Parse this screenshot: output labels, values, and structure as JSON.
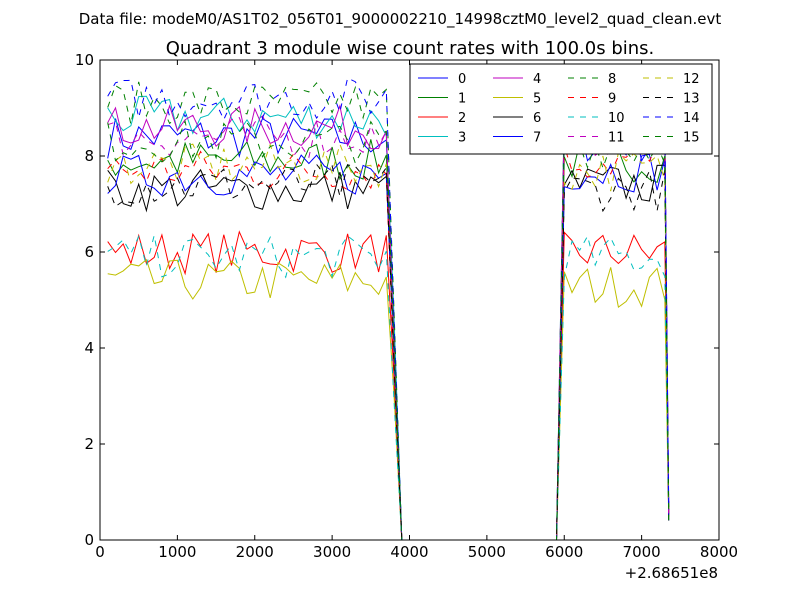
{
  "suptitle": "Data file: modeM0/AS1T02_056T01_9000002210_14998cztM0_level2_quad_clean.evt",
  "chart_data": {
    "type": "line",
    "title": "Quadrant 3 module wise count rates with 100.0s bins.",
    "xlabel": "",
    "ylabel": "",
    "x_offset_label": "+2.68651e8",
    "xlim": [
      0,
      8000
    ],
    "ylim": [
      0,
      10
    ],
    "xticks": [
      0,
      1000,
      2000,
      3000,
      4000,
      5000,
      6000,
      7000,
      8000
    ],
    "yticks": [
      0,
      2,
      4,
      6,
      8,
      10
    ],
    "x": [
      100,
      200,
      300,
      400,
      500,
      600,
      700,
      800,
      900,
      1000,
      1100,
      1200,
      1300,
      1400,
      1500,
      1600,
      1700,
      1800,
      1900,
      2000,
      2100,
      2200,
      2300,
      2400,
      2500,
      2600,
      2700,
      2800,
      2900,
      3000,
      3100,
      3200,
      3300,
      3400,
      3500,
      3600,
      3700,
      3800,
      3900,
      4000,
      4100,
      4200,
      4300,
      4400,
      4500,
      4600,
      4700,
      4800,
      4900,
      5000,
      5100,
      5200,
      5300,
      5400,
      5500,
      5600,
      5700,
      5800,
      5900,
      6000,
      6100,
      6200,
      6300,
      6400,
      6500,
      6600,
      6700,
      6800,
      6900,
      7000,
      7100,
      7200,
      7300,
      7350
    ],
    "segments": {
      "on1": [
        100,
        3800
      ],
      "off": [
        3950,
        5800
      ],
      "on2": [
        5950,
        7300
      ]
    },
    "legend": {
      "position": "top-right",
      "columns": 4
    },
    "series": [
      {
        "name": "0",
        "color": "#0000ff",
        "dash": "solid",
        "level1": 8.4,
        "level2": 8.3
      },
      {
        "name": "1",
        "color": "#008000",
        "dash": "solid",
        "level1": 7.9,
        "level2": 7.9
      },
      {
        "name": "2",
        "color": "#ff0000",
        "dash": "solid",
        "level1": 6.0,
        "level2": 6.0
      },
      {
        "name": "3",
        "color": "#00bfbf",
        "dash": "solid",
        "level1": 8.8,
        "level2": 8.6
      },
      {
        "name": "4",
        "color": "#bf00bf",
        "dash": "solid",
        "level1": 8.6,
        "level2": 8.5
      },
      {
        "name": "5",
        "color": "#bfbf00",
        "dash": "solid",
        "level1": 5.4,
        "level2": 5.3
      },
      {
        "name": "6",
        "color": "#000000",
        "dash": "solid",
        "level1": 7.3,
        "level2": 7.4
      },
      {
        "name": "7",
        "color": "#0000ff",
        "dash": "solid",
        "level1": 7.6,
        "level2": 7.7
      },
      {
        "name": "8",
        "color": "#008000",
        "dash": "dashed",
        "level1": 9.1,
        "level2": 8.6
      },
      {
        "name": "9",
        "color": "#ff0000",
        "dash": "dashed",
        "level1": 7.7,
        "level2": 7.9
      },
      {
        "name": "10",
        "color": "#00bfbf",
        "dash": "dashed",
        "level1": 5.9,
        "level2": 5.9
      },
      {
        "name": "11",
        "color": "#bf00bf",
        "dash": "dashed",
        "level1": 8.4,
        "level2": 8.4
      },
      {
        "name": "12",
        "color": "#bfbf00",
        "dash": "dashed",
        "level1": 7.8,
        "level2": 7.7
      },
      {
        "name": "13",
        "color": "#000000",
        "dash": "dashed",
        "level1": 7.4,
        "level2": 7.3
      },
      {
        "name": "14",
        "color": "#0000ff",
        "dash": "dashed",
        "level1": 9.2,
        "level2": 8.7
      },
      {
        "name": "15",
        "color": "#008000",
        "dash": "dashed",
        "level1": 8.3,
        "level2": 8.2
      }
    ]
  }
}
